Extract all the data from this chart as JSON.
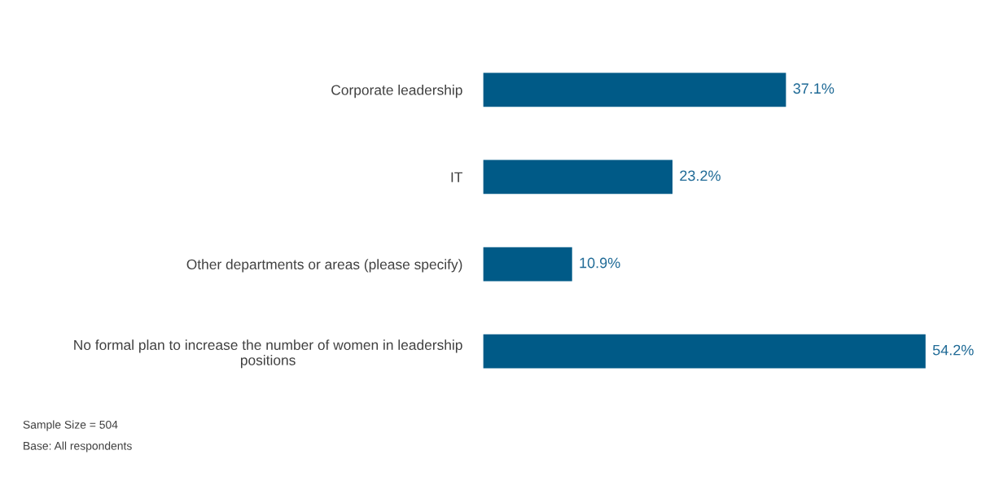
{
  "chart_data": {
    "type": "bar",
    "orientation": "horizontal",
    "categories": [
      "Corporate leadership",
      "IT",
      "Other departments or areas (please specify)",
      "No formal plan to increase the number of women in leadership\npositions"
    ],
    "values": [
      37.1,
      23.2,
      10.9,
      54.2
    ],
    "value_labels": [
      "37.1%",
      "23.2%",
      "10.9%",
      "54.2%"
    ],
    "color": "#005a87",
    "tick_labels": "y",
    "grid": false,
    "annotations": [
      "Sample Size = 504",
      "Base: All respondents"
    ]
  }
}
